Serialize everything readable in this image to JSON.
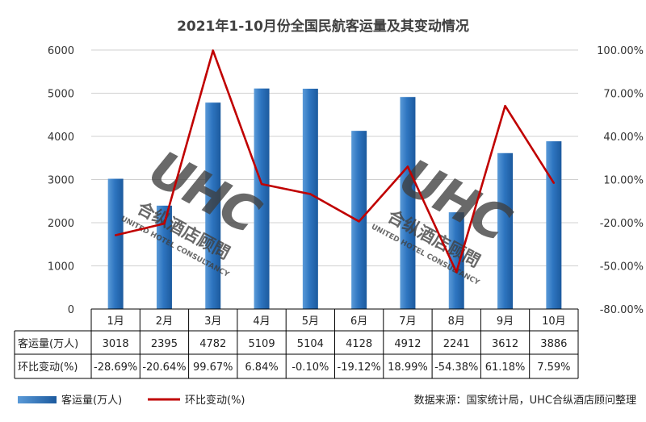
{
  "chart_data": {
    "type": "bar+line",
    "title": "2021年1-10月份全国民航客运量及其变动情况",
    "categories": [
      "1月",
      "2月",
      "3月",
      "4月",
      "5月",
      "6月",
      "7月",
      "8月",
      "9月",
      "10月"
    ],
    "series": [
      {
        "name": "客运量(万人)",
        "type": "bar",
        "axis": "left",
        "color": "#2e75c0",
        "values": [
          3018,
          2395,
          4782,
          5109,
          5104,
          4128,
          4912,
          2241,
          3612,
          3886
        ]
      },
      {
        "name": "环比变动(%)",
        "type": "line",
        "axis": "right",
        "color": "#c00000",
        "values": [
          -28.69,
          -20.64,
          99.67,
          6.84,
          -0.1,
          -19.12,
          18.99,
          -54.38,
          61.18,
          7.59
        ]
      }
    ],
    "left_axis": {
      "ylim": [
        0,
        6000
      ],
      "ticks": [
        "0",
        "1000",
        "2000",
        "3000",
        "4000",
        "5000",
        "6000"
      ]
    },
    "right_axis": {
      "ylim": [
        -80,
        100
      ],
      "ticks": [
        "-80.00%",
        "-50.00%",
        "-20.00%",
        "10.00%",
        "40.00%",
        "70.00%",
        "100.00%"
      ]
    },
    "grid": true,
    "legend_position": "bottom-left",
    "table": {
      "row_labels": [
        "客运量(万人)",
        "环比变动(%)"
      ],
      "rows": [
        [
          "3018",
          "2395",
          "4782",
          "5109",
          "5104",
          "4128",
          "4912",
          "2241",
          "3612",
          "3886"
        ],
        [
          "-28.69%",
          "-20.64%",
          "99.67%",
          "6.84%",
          "-0.10%",
          "-19.12%",
          "18.99%",
          "-54.38%",
          "61.18%",
          "7.59%"
        ]
      ]
    },
    "source_note": "数据来源：国家统计局，UHC合纵酒店顾问整理",
    "watermark": {
      "logo_text": "UHC",
      "cn_text": "合纵酒店顾問",
      "en_text": "UNITED HOTEL CONSULTANCY"
    }
  }
}
